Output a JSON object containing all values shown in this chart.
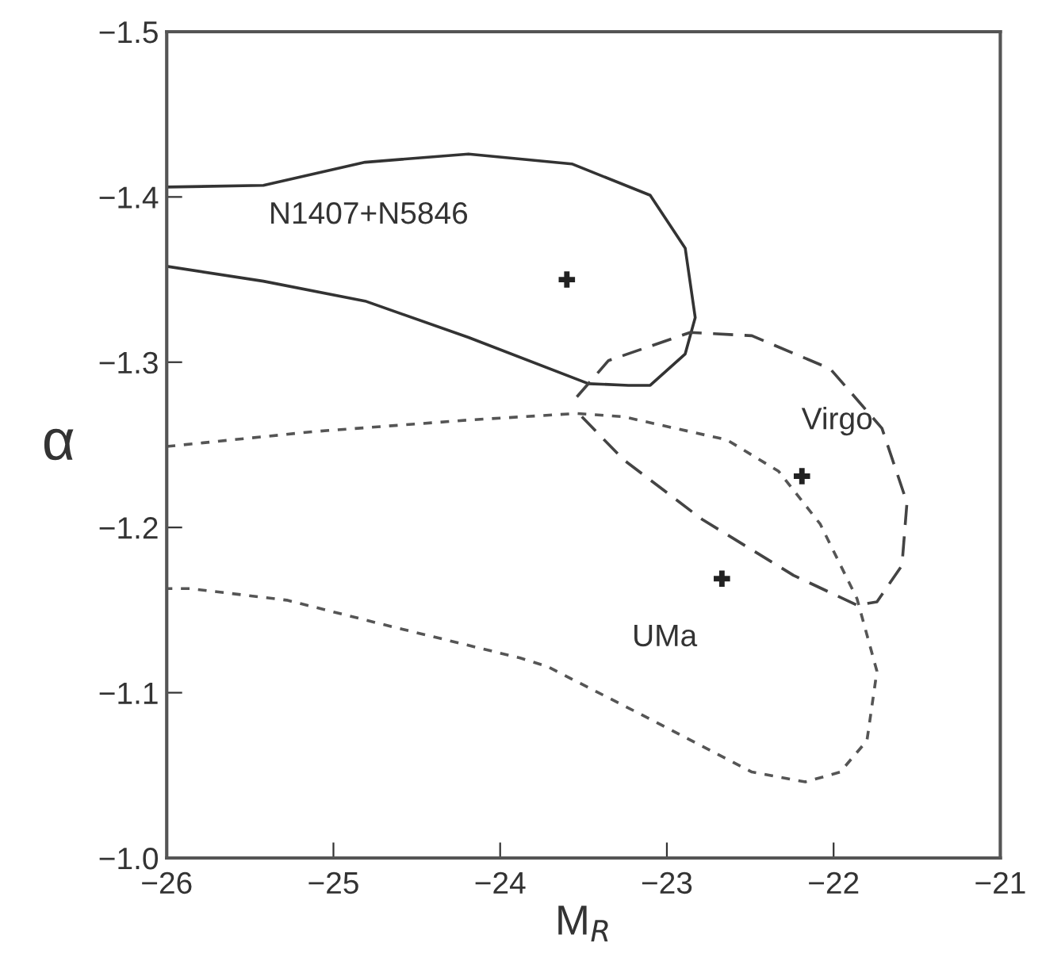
{
  "chart_data": {
    "type": "line",
    "xlabel": "M$_{R}$",
    "ylabel": "α",
    "xlim": [
      -26,
      -21
    ],
    "xticks": [
      {
        "value": -26,
        "label": "−26"
      },
      {
        "value": -25,
        "label": "−25"
      },
      {
        "value": -24,
        "label": "−24"
      },
      {
        "value": -23,
        "label": "−23"
      },
      {
        "value": -22,
        "label": "−22"
      },
      {
        "value": -21,
        "label": "−21"
      }
    ],
    "ylim": [
      -1.0,
      -1.5
    ],
    "yticks": [
      {
        "value": -1.0,
        "label": "−1.0"
      },
      {
        "value": -1.1,
        "label": "−1.1"
      },
      {
        "value": -1.2,
        "label": "−1.2"
      },
      {
        "value": -1.3,
        "label": "−1.3"
      },
      {
        "value": -1.4,
        "label": "−1.4"
      },
      {
        "value": -1.5,
        "label": "−1.5"
      }
    ],
    "grid": false,
    "series": [
      {
        "line_style": "solid",
        "color": "#333333",
        "x": [
          -26,
          -25.42,
          -24.81,
          -24.19,
          -23.57,
          -23.1,
          -22.89,
          -22.83,
          -22.89,
          -23.1,
          -23.23,
          -23.47,
          -24.19,
          -24.81,
          -25.42,
          -26
        ],
        "values": [
          -1.406,
          -1.407,
          -1.421,
          -1.426,
          -1.42,
          -1.401,
          -1.369,
          -1.327,
          -1.305,
          -1.286,
          -1.286,
          -1.287,
          -1.315,
          -1.337,
          -1.349,
          -1.358
        ]
      },
      {
        "line_style": "dashed",
        "color": "#444444",
        "x": [
          -23.54,
          -23.35,
          -22.86,
          -22.49,
          -22.02,
          -21.71,
          -21.56,
          -21.59,
          -21.74,
          -21.86,
          -22.24,
          -22.79,
          -23.26,
          -23.51
        ],
        "values": [
          -1.279,
          -1.301,
          -1.318,
          -1.316,
          -1.296,
          -1.26,
          -1.215,
          -1.177,
          -1.155,
          -1.153,
          -1.171,
          -1.205,
          -1.241,
          -1.267
        ]
      },
      {
        "line_style": "dotted",
        "color": "#555555",
        "x": [
          -26,
          -25.12,
          -24.19,
          -23.54,
          -23.26,
          -22.64,
          -22.33,
          -22.08,
          -21.86,
          -21.74,
          -21.8,
          -21.96,
          -22.17,
          -22.49,
          -23.1,
          -23.72,
          -23.88,
          -24.65,
          -25.28,
          -25.86,
          -26
        ],
        "values": [
          -1.249,
          -1.258,
          -1.265,
          -1.269,
          -1.267,
          -1.253,
          -1.234,
          -1.202,
          -1.157,
          -1.113,
          -1.071,
          -1.052,
          -1.046,
          -1.052,
          -1.084,
          -1.116,
          -1.121,
          -1.14,
          -1.156,
          -1.163,
          -1.163
        ]
      },
      {
        "type": "scatter",
        "marker": "cross",
        "color": "#222222",
        "x": [
          -23.6,
          -22.19,
          -22.67
        ],
        "values": [
          -1.35,
          -1.231,
          -1.169
        ]
      }
    ],
    "annotations": [
      "N1407+N5846",
      "Virgo",
      "UMa"
    ]
  }
}
